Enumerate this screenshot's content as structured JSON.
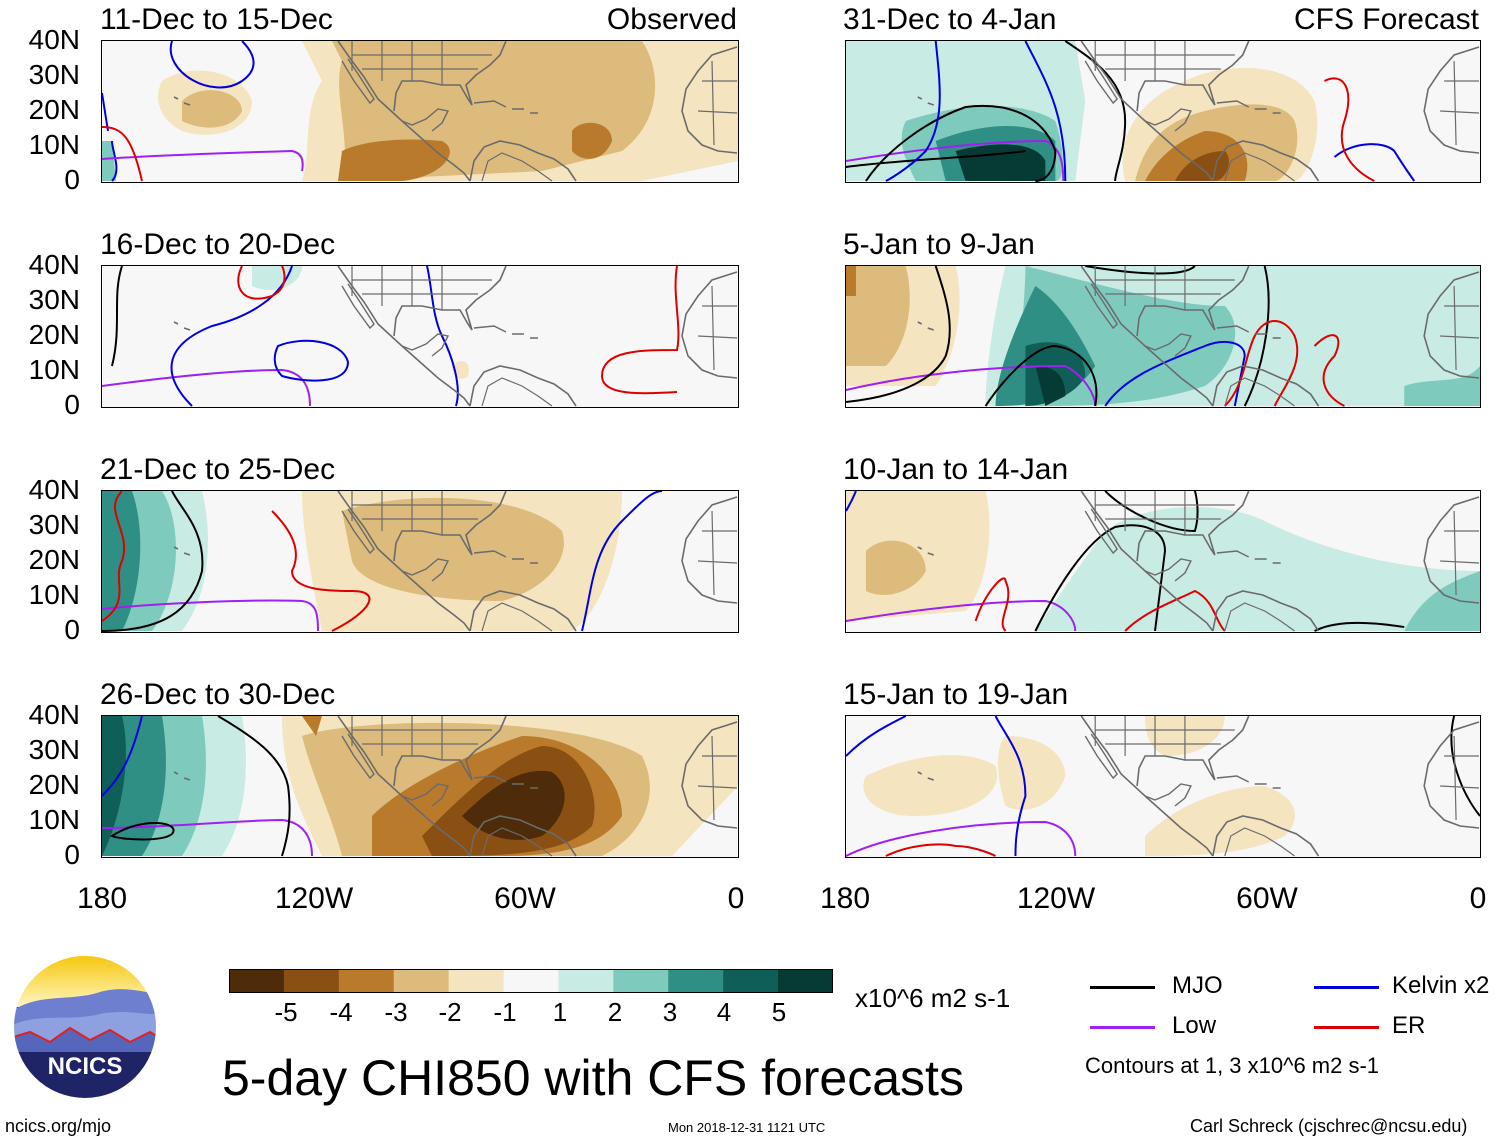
{
  "main_title": "5-day CHI850 with CFS forecasts",
  "panel_tags": {
    "observed": "Observed",
    "forecast": "CFS Forecast"
  },
  "panels": [
    {
      "title": "11-Dec to 15-Dec",
      "group": "observed"
    },
    {
      "title": "16-Dec to 20-Dec",
      "group": "observed"
    },
    {
      "title": "21-Dec to 25-Dec",
      "group": "observed"
    },
    {
      "title": "26-Dec to 30-Dec",
      "group": "observed"
    },
    {
      "title": "31-Dec to 4-Jan",
      "group": "forecast"
    },
    {
      "title": "5-Jan to 9-Jan",
      "group": "forecast"
    },
    {
      "title": "10-Jan to 14-Jan",
      "group": "forecast"
    },
    {
      "title": "15-Jan to 19-Jan",
      "group": "forecast"
    }
  ],
  "lat_labels": [
    "40N",
    "30N",
    "20N",
    "10N",
    "0"
  ],
  "lon_labels": [
    "180",
    "120W",
    "60W",
    "0"
  ],
  "colorbar": {
    "labels": [
      "-5",
      "-4",
      "-3",
      "-2",
      "-1",
      "1",
      "2",
      "3",
      "4",
      "5"
    ],
    "colors": [
      "#4e2c0a",
      "#8a4f12",
      "#b97a2c",
      "#dcbb7c",
      "#f4e4bf",
      "#f7f7f7",
      "#c8ebe3",
      "#7ecbbd",
      "#2f8f84",
      "#0f5f58",
      "#053b34"
    ],
    "units": "x10^6 m2 s-1"
  },
  "legend": [
    {
      "label": "MJO",
      "color": "#000000"
    },
    {
      "label": "Kelvin x2",
      "color": "#0000dd"
    },
    {
      "label": "Low",
      "color": "#a020f0"
    },
    {
      "label": "ER",
      "color": "#dd0000"
    }
  ],
  "contours_note": "Contours at 1, 3 x10^6 m2 s-1",
  "logo_text": "NCICS",
  "footer": {
    "url": "ncics.org/mjo",
    "timestamp": "Mon 2018-12-31 1121 UTC",
    "credit": "Carl Schreck (cjschrec@ncsu.edu)"
  }
}
